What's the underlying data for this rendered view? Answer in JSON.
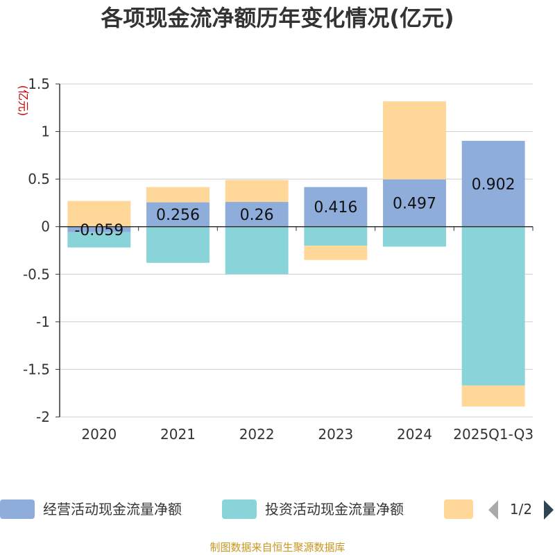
{
  "chart_data": {
    "type": "bar",
    "stacked": true,
    "title": "各项现金流净额历年变化情况(亿元)",
    "ylabel": "(亿元)",
    "xlabel": "",
    "categories": [
      "2020",
      "2021",
      "2022",
      "2023",
      "2024",
      "2025Q1-Q3"
    ],
    "ylim": [
      -2,
      1.5
    ],
    "yticks": [
      1.5,
      1,
      0.5,
      0,
      -0.5,
      -1,
      -1.5,
      -2
    ],
    "ytick_labels": [
      "1.5",
      "1",
      "0.5",
      "0",
      "-0.5",
      "-1",
      "-1.5",
      "-2"
    ],
    "grid": true,
    "series": [
      {
        "name": "经营活动现金流量净额",
        "color": "#8eaddb",
        "values": [
          -0.059,
          0.256,
          0.26,
          0.416,
          0.497,
          0.902
        ],
        "labels": [
          "-0.059",
          "0.256",
          "0.26",
          "0.416",
          "0.497",
          "0.902"
        ]
      },
      {
        "name": "投资活动现金流量净额",
        "color": "#88d4d8",
        "values": [
          -0.16,
          -0.38,
          -0.5,
          -0.2,
          -0.21,
          -1.67
        ]
      },
      {
        "name": "",
        "color": "#ffd799",
        "values": [
          0.27,
          0.16,
          0.23,
          -0.15,
          0.82,
          -0.22
        ]
      }
    ],
    "legend": {
      "position": "bottom",
      "page": "1/2"
    }
  },
  "source": "制图数据来自恒生聚源数据库"
}
